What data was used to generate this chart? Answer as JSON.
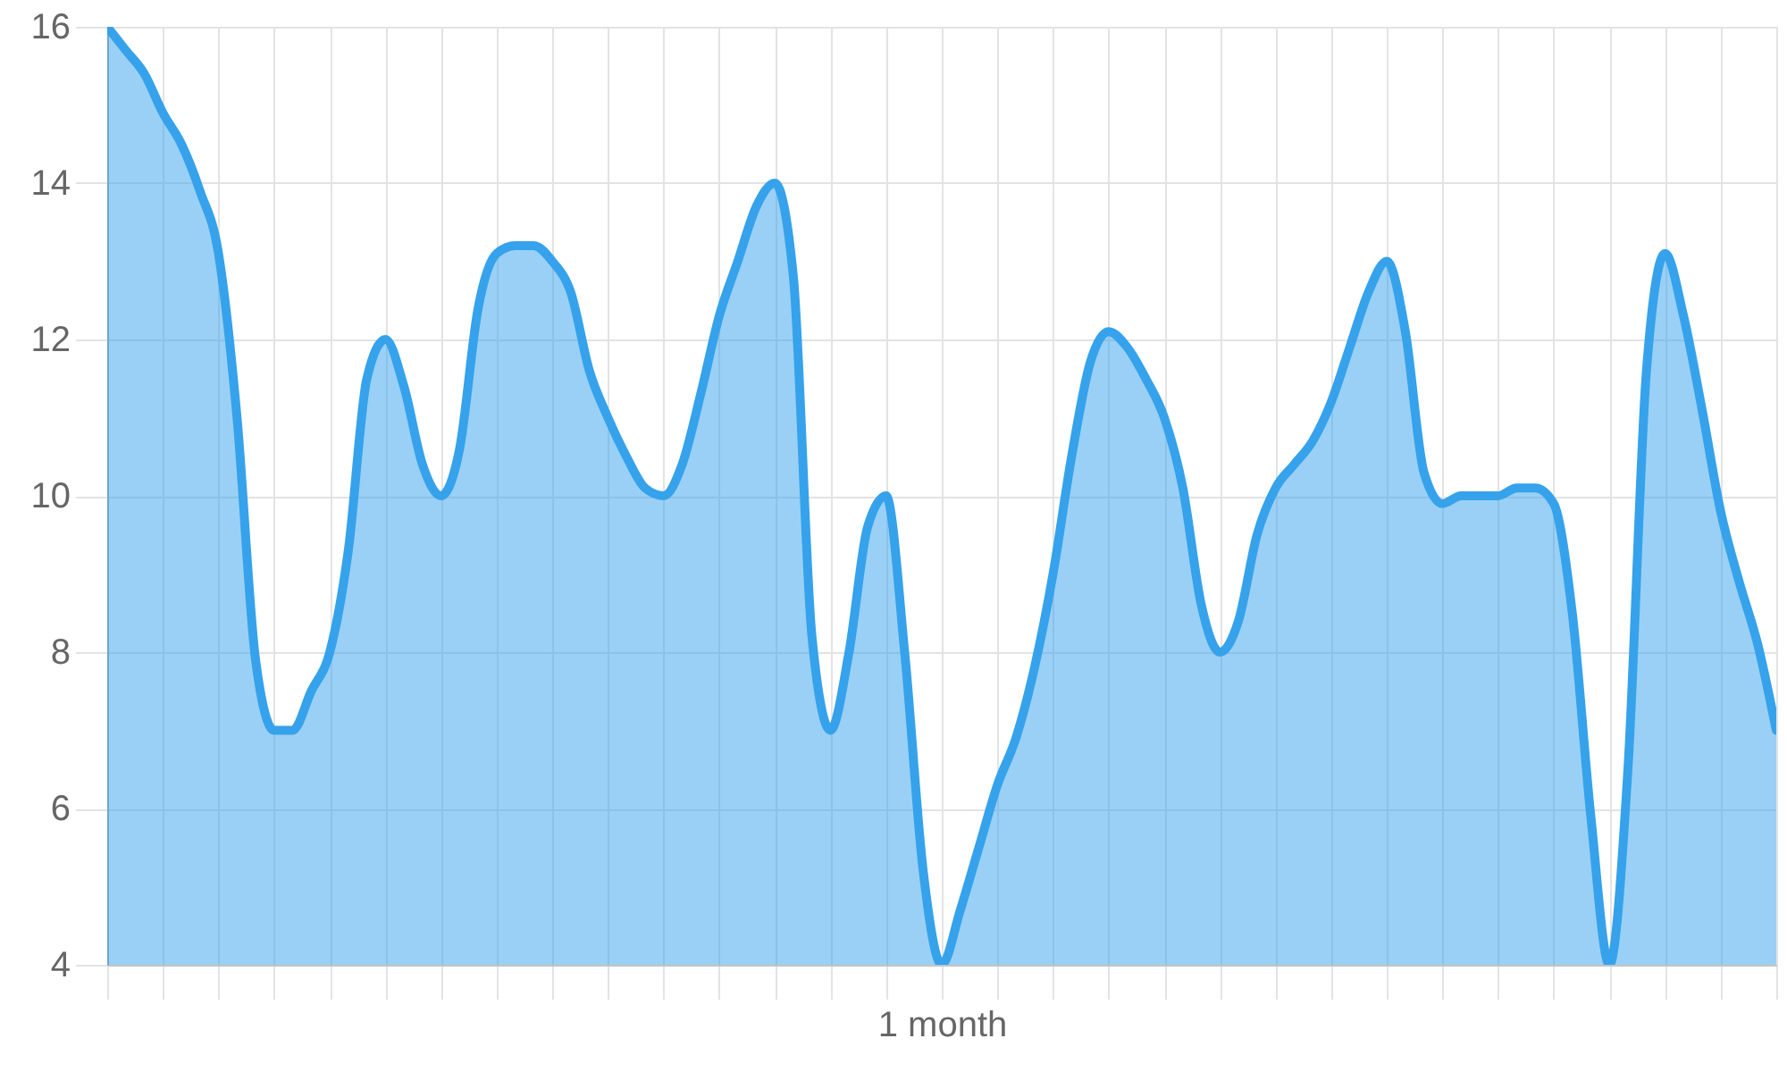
{
  "chart_data": {
    "type": "area",
    "color": "#36a2eb",
    "xlabel": "1 month",
    "categories": [
      null,
      null,
      null,
      null,
      null,
      null,
      null,
      null,
      null,
      null,
      null,
      null,
      null,
      null,
      null,
      null,
      null,
      null,
      null,
      null,
      null,
      null,
      null,
      null,
      null,
      null,
      null,
      null,
      null,
      null,
      null,
      null,
      null,
      null,
      null,
      null,
      null,
      null,
      null,
      null,
      null,
      null,
      null,
      null,
      null,
      null,
      null,
      null,
      null,
      null,
      null,
      null,
      null,
      null,
      null,
      null,
      null,
      null,
      null,
      null,
      null,
      null,
      null,
      null,
      null,
      null,
      null,
      null,
      null,
      null,
      null,
      null,
      null,
      null,
      null,
      null,
      null,
      null,
      null,
      null,
      null,
      null,
      null,
      null,
      null,
      null,
      null,
      null,
      null,
      null,
      null
    ],
    "values": [
      16,
      15.7,
      15.4,
      14.9,
      14.5,
      13.9,
      13.1,
      11.0,
      7.9,
      7.0,
      7.0,
      7.5,
      8.0,
      9.3,
      11.5,
      12.0,
      11.4,
      10.4,
      10.0,
      10.6,
      12.4,
      13.1,
      13.2,
      13.2,
      13.0,
      12.6,
      11.6,
      11.0,
      10.5,
      10.1,
      10.0,
      10.4,
      11.3,
      12.3,
      13.0,
      13.7,
      14.0,
      12.8,
      8.2,
      7.0,
      8.0,
      9.6,
      10.0,
      8.0,
      5.2,
      4.0,
      4.7,
      5.5,
      6.3,
      6.9,
      7.8,
      9.0,
      10.5,
      11.7,
      12.1,
      11.9,
      11.5,
      11.0,
      10.1,
      8.6,
      8.0,
      8.4,
      9.5,
      10.1,
      10.4,
      10.7,
      11.2,
      11.9,
      12.6,
      13.0,
      12.1,
      10.3,
      9.9,
      10.0,
      10.0,
      10.0,
      10.1,
      10.1,
      9.9,
      8.5,
      5.9,
      4.0,
      6.5,
      11.6,
      13.1,
      12.3,
      11.1,
      9.8,
      8.9,
      8.1,
      7.0
    ],
    "ylim": [
      4,
      16
    ],
    "yticks": [
      4,
      6,
      8,
      10,
      12,
      14,
      16
    ],
    "grid": true
  }
}
